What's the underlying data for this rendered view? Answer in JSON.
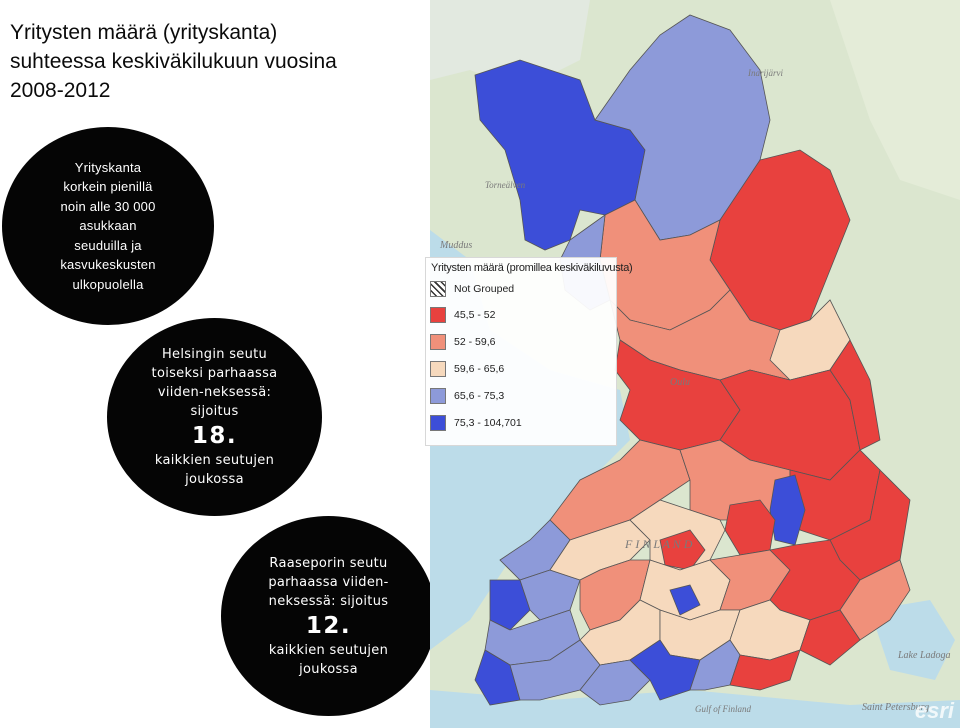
{
  "title": {
    "line1": "Yritysten määrä (yrityskanta)",
    "line2": "suhteessa  keskiväkilukuun vuosina",
    "line3": "2008-2012"
  },
  "callouts": {
    "c1": [
      "Yrityskanta",
      "korkein pienillä",
      "noin alle 30 000",
      "asukkaan",
      "seuduilla ja",
      "kasvukeskusten",
      "ulkopuolella"
    ],
    "c2": {
      "lines": [
        "Helsingin seutu",
        "toiseksi parhaassa",
        "viiden-neksessä:",
        "sijoitus"
      ],
      "rank": "18.",
      "tail": [
        "kaikkien seutujen",
        "joukossa"
      ]
    },
    "c3": {
      "lines": [
        "Raaseporin seutu",
        "parhaassa viiden-",
        "neksessä: sijoitus"
      ],
      "rank": "12.",
      "tail": [
        "kaikkien seutujen",
        "joukossa"
      ]
    }
  },
  "legend": {
    "title": "Yritysten määrä (promillea keskiväkiluvusta)",
    "items": [
      {
        "label": "Not Grouped",
        "color": "hatch"
      },
      {
        "label": "45,5 - 52",
        "color": "#e8413e"
      },
      {
        "label": "52 - 59,6",
        "color": "#f0907a"
      },
      {
        "label": "59,6 - 65,6",
        "color": "#f6d9bd"
      },
      {
        "label": "65,6 - 75,3",
        "color": "#8d9ad9"
      },
      {
        "label": "75,3 - 104,701",
        "color": "#3c4ed8"
      }
    ]
  },
  "basemap_labels": {
    "finland": "F I N L A N D",
    "muddus": "Muddus",
    "oulu": "Oulu",
    "inari": "Inarijärvi",
    "tornio": "Torneälven",
    "lake_ladoga": "Lake Ladoga",
    "gulf": "Gulf of Finland",
    "stp": "Saint Petersburg"
  },
  "attribution": "esri"
}
